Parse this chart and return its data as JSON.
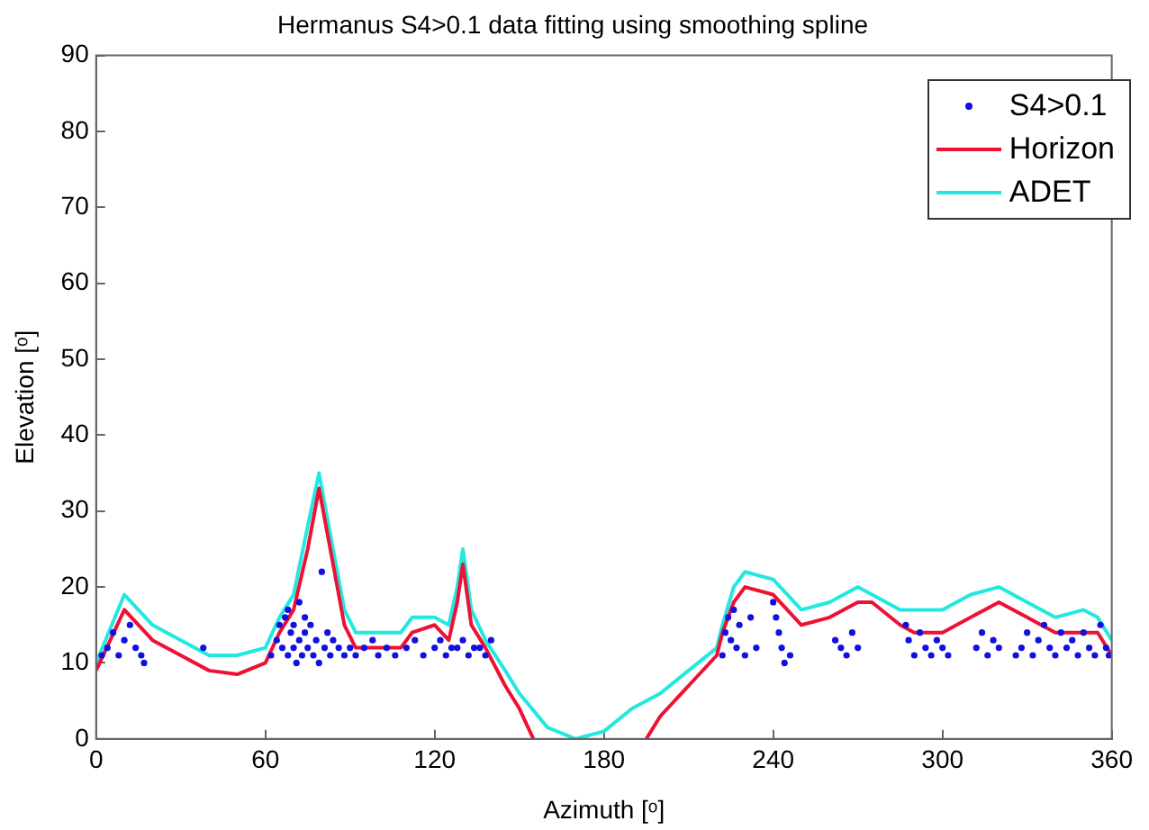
{
  "chart_data": {
    "type": "line",
    "title": "Hermanus S4>0.1 data fitting using smoothing spline",
    "xlabel": "Azimuth [ᵒ]",
    "ylabel": "Elevation [ᵒ]",
    "xlim": [
      0,
      360
    ],
    "xticks": [
      0,
      60,
      120,
      180,
      240,
      300,
      360
    ],
    "ylim": [
      0,
      90
    ],
    "yticks": [
      0,
      10,
      20,
      30,
      40,
      50,
      60,
      70,
      80,
      90
    ],
    "grid": false,
    "legend": "top right",
    "series": [
      {
        "name": "S4>0.1",
        "type": "scatter",
        "marker": "circle",
        "color": "#1010e0",
        "x": [
          2,
          4,
          6,
          8,
          10,
          12,
          14,
          16,
          17,
          38,
          62,
          64,
          65,
          66,
          67,
          68,
          68,
          69,
          70,
          70,
          71,
          72,
          72,
          73,
          74,
          74,
          75,
          76,
          77,
          78,
          79,
          80,
          81,
          82,
          83,
          84,
          86,
          88,
          90,
          92,
          95,
          98,
          100,
          103,
          106,
          110,
          113,
          116,
          120,
          122,
          124,
          126,
          128,
          130,
          132,
          134,
          136,
          138,
          140,
          222,
          223,
          224,
          225,
          226,
          227,
          228,
          230,
          232,
          234,
          240,
          241,
          242,
          243,
          244,
          246,
          262,
          264,
          266,
          268,
          270,
          287,
          288,
          290,
          292,
          294,
          296,
          298,
          300,
          302,
          312,
          314,
          316,
          318,
          320,
          326,
          328,
          330,
          332,
          334,
          336,
          338,
          340,
          342,
          344,
          346,
          348,
          350,
          352,
          354,
          356,
          358,
          359
        ],
        "values": [
          11,
          12,
          14,
          11,
          13,
          15,
          12,
          11,
          10,
          12,
          11,
          13,
          15,
          12,
          16,
          11,
          17,
          14,
          12,
          15,
          10,
          13,
          18,
          11,
          14,
          16,
          12,
          15,
          11,
          13,
          10,
          22,
          12,
          14,
          11,
          13,
          12,
          11,
          12,
          11,
          12,
          13,
          11,
          12,
          11,
          12,
          13,
          11,
          12,
          13,
          11,
          12,
          12,
          13,
          11,
          12,
          12,
          11,
          13,
          11,
          14,
          16,
          13,
          17,
          12,
          15,
          11,
          16,
          12,
          18,
          16,
          14,
          12,
          10,
          11,
          13,
          12,
          11,
          14,
          12,
          15,
          13,
          11,
          14,
          12,
          11,
          13,
          12,
          11,
          12,
          14,
          11,
          13,
          12,
          11,
          12,
          14,
          11,
          13,
          15,
          12,
          11,
          14,
          12,
          13,
          11,
          14,
          12,
          11,
          15,
          12,
          11
        ]
      },
      {
        "name": "Horizon",
        "color": "#ee1133",
        "x": [
          0,
          10,
          20,
          30,
          40,
          50,
          60,
          65,
          70,
          75,
          79,
          83,
          88,
          92,
          100,
          108,
          112,
          120,
          125,
          128,
          130,
          133,
          138,
          145,
          150,
          155,
          156,
          195,
          200,
          210,
          220,
          222,
          226,
          230,
          240,
          250,
          260,
          270,
          275,
          285,
          290,
          300,
          310,
          320,
          330,
          340,
          350,
          355,
          360
        ],
        "values": [
          9,
          17,
          13,
          11,
          9,
          8.5,
          10,
          14,
          17,
          25,
          33,
          25,
          15,
          12,
          12,
          12,
          14,
          15,
          13,
          18,
          23,
          15,
          12,
          7,
          4,
          0,
          null,
          0,
          3,
          7,
          11,
          14,
          18,
          20,
          19,
          15,
          16,
          18,
          18,
          15,
          14,
          14,
          16,
          18,
          16,
          14,
          14,
          14,
          11
        ]
      },
      {
        "name": "ADET",
        "color": "#22e8e0",
        "x": [
          0,
          10,
          20,
          30,
          40,
          50,
          60,
          65,
          70,
          75,
          79,
          83,
          88,
          92,
          100,
          108,
          112,
          120,
          125,
          128,
          130,
          133,
          138,
          145,
          150,
          160,
          170,
          180,
          190,
          200,
          210,
          220,
          222,
          226,
          230,
          240,
          250,
          260,
          270,
          275,
          285,
          290,
          300,
          310,
          320,
          330,
          340,
          350,
          355,
          360
        ],
        "values": [
          10,
          19,
          15,
          13,
          11,
          11,
          12,
          16,
          19,
          28,
          35,
          27,
          17,
          14,
          14,
          14,
          16,
          16,
          15,
          20,
          25,
          17,
          13,
          9,
          6,
          1.5,
          0,
          1,
          4,
          6,
          9,
          12,
          15,
          20,
          22,
          21,
          17,
          18,
          20,
          19,
          17,
          17,
          17,
          19,
          20,
          18,
          16,
          17,
          16,
          13
        ]
      }
    ]
  }
}
